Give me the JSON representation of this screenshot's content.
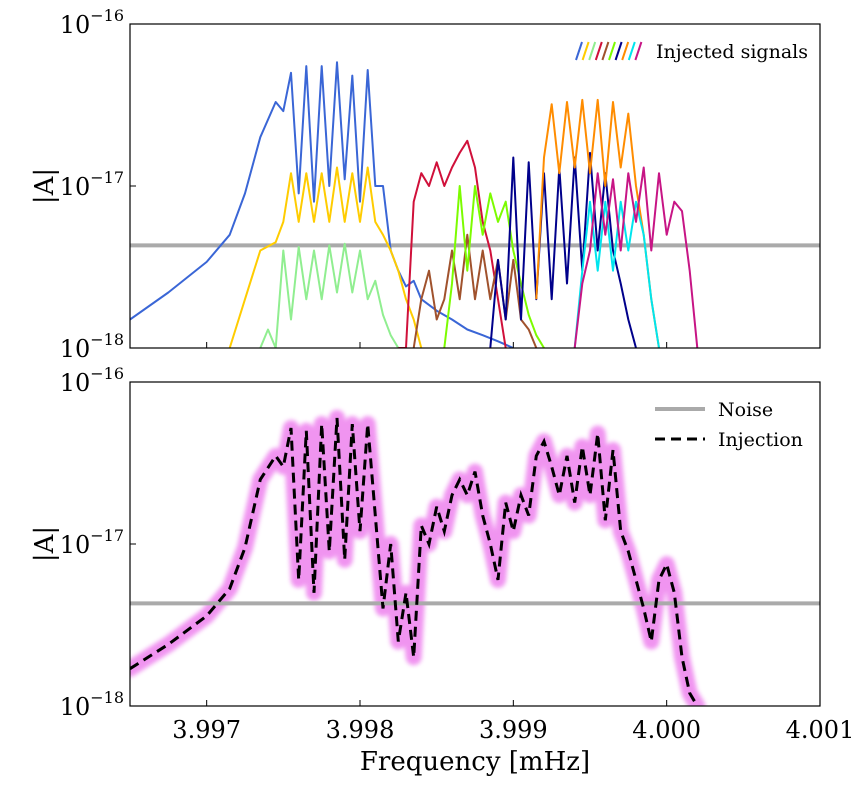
{
  "chart_data": [
    {
      "type": "line",
      "panel": "top",
      "yscale": "log",
      "ylabel": "|A|",
      "xlabel": "",
      "xlim": [
        3.9965,
        4.001
      ],
      "ylim": [
        1e-18,
        1e-16
      ],
      "ytick_labels": [
        {
          "value": 1e-16,
          "base": "10",
          "exp": "−16"
        },
        {
          "value": 1e-17,
          "base": "10",
          "exp": "−17"
        },
        {
          "value": 1e-18,
          "base": "10",
          "exp": "−18"
        }
      ],
      "noise_level": 4.3e-18,
      "legend": {
        "label": "Injected signals",
        "position": "top-right"
      },
      "series": [
        {
          "name": "signal-blue",
          "color": "#3a66d6",
          "x": [
            3.9965,
            3.99675,
            3.997,
            3.99715,
            3.99725,
            3.99735,
            3.99745,
            3.9975,
            3.99755,
            3.9976,
            3.99765,
            3.9977,
            3.99775,
            3.9978,
            3.99785,
            3.9979,
            3.99795,
            3.998,
            3.99805,
            3.9981,
            3.99815,
            3.9982,
            3.99825,
            3.9983,
            3.99835,
            3.9984,
            3.9985,
            3.9986,
            3.9987,
            3.9988,
            3.9989,
            3.999
          ],
          "y": [
            1.5e-18,
            2.2e-18,
            3.4e-18,
            5e-18,
            9e-18,
            2e-17,
            3.3e-17,
            2.9e-17,
            5e-17,
            9e-18,
            5.5e-17,
            8e-18,
            5.5e-17,
            1e-17,
            5.8e-17,
            1.1e-17,
            4.8e-17,
            8e-18,
            5.2e-17,
            1e-17,
            1e-17,
            4e-18,
            3e-18,
            2.4e-18,
            2.6e-18,
            2e-18,
            1.7e-18,
            1.5e-18,
            1.3e-18,
            1.2e-18,
            1.1e-18,
            1e-18
          ]
        },
        {
          "name": "signal-gold",
          "color": "#ffcc00",
          "x": [
            3.99715,
            3.99725,
            3.99735,
            3.99745,
            3.9975,
            3.99755,
            3.9976,
            3.99765,
            3.9977,
            3.99775,
            3.9978,
            3.99785,
            3.9979,
            3.99795,
            3.998,
            3.99805,
            3.9981,
            3.99815,
            3.9982,
            3.99825,
            3.9983,
            3.99835,
            3.9984
          ],
          "y": [
            1e-18,
            2e-18,
            4e-18,
            4.5e-18,
            6e-18,
            1.2e-17,
            6e-18,
            1.2e-17,
            6e-18,
            1.2e-17,
            6e-18,
            1.3e-17,
            6e-18,
            1.2e-17,
            6e-18,
            1.3e-17,
            6e-18,
            5e-18,
            4e-18,
            3e-18,
            2e-18,
            1.5e-18,
            1e-18
          ]
        },
        {
          "name": "signal-lightgreen",
          "color": "#90ee90",
          "x": [
            3.99735,
            3.9974,
            3.99745,
            3.9975,
            3.99755,
            3.9976,
            3.99765,
            3.9977,
            3.99775,
            3.9978,
            3.99785,
            3.9979,
            3.99795,
            3.998,
            3.99805,
            3.9981,
            3.99815,
            3.9982,
            3.99825
          ],
          "y": [
            1e-18,
            1.3e-18,
            1e-18,
            4e-18,
            1.5e-18,
            4.2e-18,
            2e-18,
            4e-18,
            2e-18,
            4.3e-18,
            2.2e-18,
            4.4e-18,
            2.2e-18,
            4e-18,
            2e-18,
            2.6e-18,
            1.6e-18,
            1.2e-18,
            1e-18
          ]
        },
        {
          "name": "signal-red",
          "color": "#d0103a",
          "x": [
            3.99825,
            3.9983,
            3.99835,
            3.9984,
            3.99845,
            3.9985,
            3.99855,
            3.9986,
            3.99865,
            3.9987,
            3.99875,
            3.9988,
            3.99885,
            3.9989,
            3.99895
          ],
          "y": [
            1e-18,
            1e-18,
            8e-18,
            1.2e-17,
            1e-17,
            1.4e-17,
            1e-17,
            1.3e-17,
            1.6e-17,
            1.9e-17,
            1.3e-17,
            6e-18,
            4e-18,
            2e-18,
            1e-18
          ]
        },
        {
          "name": "signal-brown",
          "color": "#a0522d",
          "x": [
            3.99835,
            3.9984,
            3.99845,
            3.9985,
            3.99855,
            3.9986,
            3.99865,
            3.9987,
            3.99875,
            3.9988,
            3.99885,
            3.9989,
            3.99895,
            3.999,
            3.99905,
            3.9991,
            3.99915
          ],
          "y": [
            1e-18,
            2e-18,
            3e-18,
            1.5e-18,
            2e-18,
            4e-18,
            2e-18,
            5e-18,
            2e-18,
            4e-18,
            2e-18,
            3.5e-18,
            1.5e-18,
            3.5e-18,
            1.5e-18,
            1.3e-18,
            1e-18
          ]
        },
        {
          "name": "signal-green",
          "color": "#7cfc00",
          "x": [
            3.99855,
            3.9986,
            3.99865,
            3.9987,
            3.99875,
            3.9988,
            3.99885,
            3.9989,
            3.99895,
            3.999,
            3.99905,
            3.9991,
            3.99915,
            3.9992
          ],
          "y": [
            1e-18,
            2.5e-18,
            1e-17,
            3e-18,
            1e-17,
            5e-18,
            9e-18,
            6e-18,
            8e-18,
            4e-18,
            2.5e-18,
            1.6e-18,
            1.2e-18,
            1e-18
          ]
        },
        {
          "name": "signal-navy",
          "color": "#00008b",
          "x": [
            3.99885,
            3.9989,
            3.99895,
            3.999,
            3.99905,
            3.9991,
            3.99915,
            3.9992,
            3.99925,
            3.9993,
            3.99935,
            3.9994,
            3.99945,
            3.9995,
            3.99955,
            3.9996,
            3.99965,
            3.9997,
            3.99975,
            3.9998
          ],
          "y": [
            1e-18,
            3.5e-18,
            1.5e-18,
            1.5e-17,
            1.5e-18,
            1.4e-17,
            2e-18,
            1.2e-17,
            2e-18,
            1.3e-17,
            2.5e-18,
            1.5e-17,
            3e-18,
            1.6e-17,
            4e-18,
            1.2e-17,
            4e-18,
            2.5e-18,
            1.5e-18,
            1e-18
          ]
        },
        {
          "name": "signal-orange",
          "color": "#ff8c00",
          "x": [
            3.99915,
            3.9992,
            3.99925,
            3.9993,
            3.99935,
            3.9994,
            3.99945,
            3.9995,
            3.99955,
            3.9996,
            3.99965,
            3.9997,
            3.99975,
            3.9998,
            3.99985,
            3.9999,
            3.99995
          ],
          "y": [
            2e-18,
            1.5e-17,
            3.2e-17,
            1.2e-17,
            3.3e-17,
            1.3e-17,
            3.4e-17,
            1.2e-17,
            3.4e-17,
            1e-17,
            3.3e-17,
            1.3e-17,
            2.8e-17,
            1e-17,
            5e-18,
            2e-18,
            1e-18
          ]
        },
        {
          "name": "signal-cyan",
          "color": "#00e5ee",
          "x": [
            3.9994,
            3.99945,
            3.9995,
            3.99955,
            3.9996,
            3.99965,
            3.9997,
            3.99975,
            3.9998,
            3.99985,
            3.9999,
            3.99995
          ],
          "y": [
            1e-18,
            3e-18,
            8e-18,
            3e-18,
            8e-18,
            3e-18,
            8e-18,
            4e-18,
            8e-18,
            5e-18,
            2e-18,
            1e-18
          ]
        },
        {
          "name": "signal-magenta",
          "color": "#c71585",
          "x": [
            3.9994,
            3.99945,
            3.9995,
            3.99955,
            3.9996,
            3.99965,
            3.9997,
            3.99975,
            3.9998,
            3.99985,
            3.9999,
            3.99995,
            4.0,
            4.00005,
            4.0001,
            4.00015,
            4.0002
          ],
          "y": [
            1e-18,
            2.5e-18,
            4e-18,
            1.2e-17,
            5e-18,
            1.1e-17,
            4e-18,
            1.2e-17,
            6e-18,
            1.3e-17,
            4e-18,
            1.2e-17,
            5e-18,
            8e-18,
            7e-18,
            3e-18,
            1e-18
          ]
        }
      ]
    },
    {
      "type": "line",
      "panel": "bottom",
      "yscale": "log",
      "ylabel": "|A|",
      "xlabel": "Frequency [mHz]",
      "xlim": [
        3.9965,
        4.001
      ],
      "ylim": [
        1e-18,
        1e-16
      ],
      "xticks": [
        3.997,
        3.998,
        3.999,
        4.0,
        4.001
      ],
      "xtick_labels": [
        "3.997",
        "3.998",
        "3.999",
        "4.000",
        "4.001"
      ],
      "ytick_labels": [
        {
          "value": 1e-16,
          "base": "10",
          "exp": "−16"
        },
        {
          "value": 1e-17,
          "base": "10",
          "exp": "−17"
        },
        {
          "value": 1e-18,
          "base": "10",
          "exp": "−18"
        }
      ],
      "noise_level": 4.3e-18,
      "band_color": "#ee82ee",
      "legend": {
        "position": "top-right",
        "entries": [
          {
            "label": "Noise",
            "style": "solid",
            "color": "#aaaaaa"
          },
          {
            "label": "Injection",
            "style": "dashed",
            "color": "#000000"
          }
        ]
      },
      "series": [
        {
          "name": "Injection",
          "color": "#000000",
          "x": [
            3.9965,
            3.99675,
            3.997,
            3.99715,
            3.99725,
            3.99735,
            3.99745,
            3.9975,
            3.99755,
            3.9976,
            3.99765,
            3.9977,
            3.99775,
            3.9978,
            3.99785,
            3.9979,
            3.99795,
            3.998,
            3.99805,
            3.9981,
            3.99815,
            3.9982,
            3.99825,
            3.9983,
            3.99835,
            3.9984,
            3.99845,
            3.9985,
            3.99855,
            3.9986,
            3.99865,
            3.9987,
            3.99875,
            3.9988,
            3.99885,
            3.9989,
            3.99895,
            3.999,
            3.99905,
            3.9991,
            3.99915,
            3.9992,
            3.99925,
            3.9993,
            3.99935,
            3.9994,
            3.99945,
            3.9995,
            3.99955,
            3.9996,
            3.99965,
            3.9997,
            3.99975,
            3.9998,
            3.99985,
            3.9999,
            3.99995,
            4.0,
            4.00005,
            4.0001,
            4.00015,
            4.0002
          ],
          "y": [
            1.7e-18,
            2.4e-18,
            3.6e-18,
            5.3e-18,
            9.5e-18,
            2.5e-17,
            3.5e-17,
            3e-17,
            5.2e-17,
            6e-18,
            5e-17,
            5e-18,
            5.5e-17,
            9e-18,
            6e-17,
            8e-18,
            5.5e-17,
            1.2e-17,
            5.5e-17,
            1.5e-17,
            4e-18,
            1e-17,
            2.5e-18,
            5e-18,
            2e-18,
            1.3e-17,
            1e-17,
            1.7e-17,
            1.2e-17,
            2e-17,
            2.5e-17,
            2e-17,
            2.8e-17,
            1.5e-17,
            1e-17,
            6e-18,
            1.8e-17,
            1.2e-17,
            2e-17,
            1.5e-17,
            3.5e-17,
            4.3e-17,
            3e-17,
            2e-17,
            3.5e-17,
            1.8e-17,
            4e-17,
            2e-17,
            4.8e-17,
            1.4e-17,
            3.8e-17,
            1.2e-17,
            9e-18,
            6e-18,
            4e-18,
            2.5e-18,
            6e-18,
            7.5e-18,
            5e-18,
            2e-18,
            1.2e-18,
            1e-18
          ]
        }
      ]
    }
  ]
}
